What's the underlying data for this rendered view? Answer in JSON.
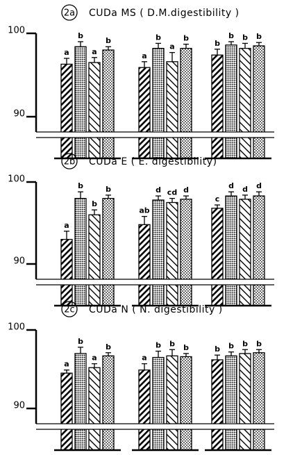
{
  "chart_data": [
    {
      "type": "bar",
      "label": "2a",
      "title": "CUDa   MS ( D.M.digestibility )",
      "ylim": [
        90,
        100
      ],
      "yticks": [
        90,
        100
      ],
      "series": [
        {
          "values": [
            96.3,
            95.9,
            97.4
          ],
          "errors": [
            0.7,
            0.7,
            0.7
          ],
          "letters": [
            "a",
            "a",
            "b"
          ]
        },
        {
          "values": [
            98.4,
            98.2,
            98.6
          ],
          "errors": [
            0.6,
            0.6,
            0.4
          ],
          "letters": [
            "b",
            "b",
            "b"
          ]
        },
        {
          "values": [
            96.5,
            96.6,
            98.2
          ],
          "errors": [
            0.6,
            1.1,
            0.6
          ],
          "letters": [
            "a",
            "a",
            "b"
          ]
        },
        {
          "values": [
            98.0,
            98.2,
            98.5
          ],
          "errors": [
            0.4,
            0.5,
            0.4
          ],
          "letters": [
            "b",
            "b",
            "b"
          ]
        }
      ]
    },
    {
      "type": "bar",
      "label": "2b",
      "title": "CUDa   E  ( E. digestibility)",
      "ylim": [
        90,
        100
      ],
      "yticks": [
        90,
        100
      ],
      "series": [
        {
          "values": [
            93.0,
            94.8,
            96.8
          ],
          "errors": [
            1.0,
            1.0,
            0.4
          ],
          "letters": [
            "a",
            "ab",
            "c"
          ]
        },
        {
          "values": [
            98.0,
            97.8,
            98.3
          ],
          "errors": [
            0.8,
            0.5,
            0.5
          ],
          "letters": [
            "b",
            "d",
            "d"
          ]
        },
        {
          "values": [
            96.0,
            97.5,
            97.9
          ],
          "errors": [
            0.6,
            0.5,
            0.5
          ],
          "letters": [
            "b",
            "cd",
            "d"
          ]
        },
        {
          "values": [
            98.0,
            97.9,
            98.3
          ],
          "errors": [
            0.4,
            0.4,
            0.5
          ],
          "letters": [
            "b",
            "d",
            "d"
          ]
        }
      ]
    },
    {
      "type": "bar",
      "label": "2c",
      "title": "CUDa   N  ( N. digestibility )",
      "ylim": [
        90,
        100
      ],
      "yticks": [
        90,
        100
      ],
      "series": [
        {
          "values": [
            94.5,
            94.9,
            96.2
          ],
          "errors": [
            0.4,
            0.8,
            0.6
          ],
          "letters": [
            "a",
            "a",
            "b"
          ]
        },
        {
          "values": [
            97.0,
            96.5,
            96.7
          ],
          "errors": [
            0.8,
            0.8,
            0.5
          ],
          "letters": [
            "b",
            "b",
            "b"
          ]
        },
        {
          "values": [
            95.2,
            96.7,
            97.0
          ],
          "errors": [
            0.5,
            0.8,
            0.5
          ],
          "letters": [
            "a",
            "b",
            "b"
          ]
        },
        {
          "values": [
            96.7,
            96.6,
            97.1
          ],
          "errors": [
            0.4,
            0.4,
            0.4
          ],
          "letters": [
            "b",
            "b",
            "b"
          ]
        }
      ]
    }
  ]
}
